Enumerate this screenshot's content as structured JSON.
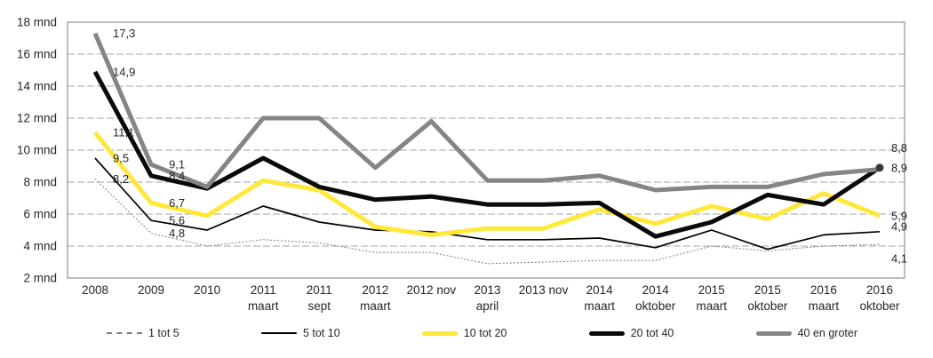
{
  "page": {
    "background": "#ffffff"
  },
  "chart_data": {
    "type": "line",
    "title": "",
    "unit": "mnd",
    "ylim": [
      2,
      18
    ],
    "grid": "horizontal-dashed",
    "legend_position": "bottom",
    "y_ticks": [
      {
        "value": 18,
        "label": "18 mnd"
      },
      {
        "value": 16,
        "label": "16 mnd"
      },
      {
        "value": 14,
        "label": "14 mnd"
      },
      {
        "value": 12,
        "label": "12 mnd"
      },
      {
        "value": 10,
        "label": "10 mnd"
      },
      {
        "value": 8,
        "label": "8 mnd"
      },
      {
        "value": 6,
        "label": "6 mnd"
      },
      {
        "value": 4,
        "label": "4 mnd"
      },
      {
        "value": 2,
        "label": "2 mnd"
      }
    ],
    "categories": [
      {
        "line1": "2008",
        "line2": ""
      },
      {
        "line1": "2009",
        "line2": ""
      },
      {
        "line1": "2010",
        "line2": ""
      },
      {
        "line1": "2011",
        "line2": "maart"
      },
      {
        "line1": "2011",
        "line2": "sept"
      },
      {
        "line1": "2012",
        "line2": "maart"
      },
      {
        "line1": "2012 nov",
        "line2": ""
      },
      {
        "line1": "2013",
        "line2": "april"
      },
      {
        "line1": "2013 nov",
        "line2": ""
      },
      {
        "line1": "2014",
        "line2": "maart"
      },
      {
        "line1": "2014",
        "line2": "oktober"
      },
      {
        "line1": "2015",
        "line2": "maart"
      },
      {
        "line1": "2015",
        "line2": "oktober"
      },
      {
        "line1": "2016",
        "line2": "maart"
      },
      {
        "line1": "2016",
        "line2": "oktober"
      }
    ],
    "series": [
      {
        "name": "1 tot 5",
        "color": "#7d7d7d",
        "style": "dotted",
        "width": 1,
        "values": [
          8.2,
          4.8,
          4.0,
          4.4,
          4.2,
          3.6,
          3.6,
          2.9,
          3.0,
          3.1,
          3.1,
          4.0,
          3.7,
          4.0,
          4.1
        ]
      },
      {
        "name": "5 tot 10",
        "color": "#000000",
        "style": "solid",
        "width": 1.7,
        "values": [
          9.5,
          5.6,
          5.0,
          6.5,
          5.5,
          5.0,
          4.9,
          4.4,
          4.4,
          4.5,
          3.9,
          5.0,
          3.8,
          4.7,
          4.9
        ]
      },
      {
        "name": "10 tot 20",
        "color": "#ffe83a",
        "style": "solid",
        "width": 5,
        "values": [
          11.1,
          6.7,
          5.9,
          8.1,
          7.5,
          5.2,
          4.7,
          5.1,
          5.1,
          6.3,
          5.4,
          6.5,
          5.7,
          7.3,
          5.9
        ]
      },
      {
        "name": "20 tot 40",
        "color": "#0a0a0a",
        "style": "solid",
        "width": 5,
        "values": [
          14.9,
          8.4,
          7.6,
          9.5,
          7.7,
          6.9,
          7.1,
          6.6,
          6.6,
          6.7,
          4.6,
          5.5,
          7.2,
          6.6,
          8.9
        ]
      },
      {
        "name": "40 en groter",
        "color": "#858585",
        "style": "solid",
        "width": 5,
        "values": [
          17.3,
          9.1,
          7.7,
          12.0,
          12.0,
          8.9,
          11.8,
          8.1,
          8.1,
          8.4,
          7.5,
          7.7,
          7.7,
          8.5,
          8.8
        ]
      }
    ],
    "point_labels": [
      {
        "series": 4,
        "point": 0,
        "text": "17,3"
      },
      {
        "series": 3,
        "point": 0,
        "text": "14,9"
      },
      {
        "series": 2,
        "point": 0,
        "text": "11,1"
      },
      {
        "series": 1,
        "point": 0,
        "text": "9,5"
      },
      {
        "series": 0,
        "point": 0,
        "text": "8,2"
      },
      {
        "series": 4,
        "point": 1,
        "text": "9,1"
      },
      {
        "series": 3,
        "point": 1,
        "text": "8,4"
      },
      {
        "series": 2,
        "point": 1,
        "text": "6,7"
      },
      {
        "series": 1,
        "point": 1,
        "text": "5,6"
      },
      {
        "series": 0,
        "point": 1,
        "text": "4,8"
      },
      {
        "series": 4,
        "point": 14,
        "text": "8,8",
        "dy": -24
      },
      {
        "series": 3,
        "point": 14,
        "text": "8,9"
      },
      {
        "series": 2,
        "point": 14,
        "text": "5,9"
      },
      {
        "series": 1,
        "point": 14,
        "text": "4,9",
        "dy": -6
      },
      {
        "series": 0,
        "point": 14,
        "text": "4,1",
        "dy": 16
      }
    ],
    "end_marker": {
      "series": 3,
      "point": 14
    }
  }
}
